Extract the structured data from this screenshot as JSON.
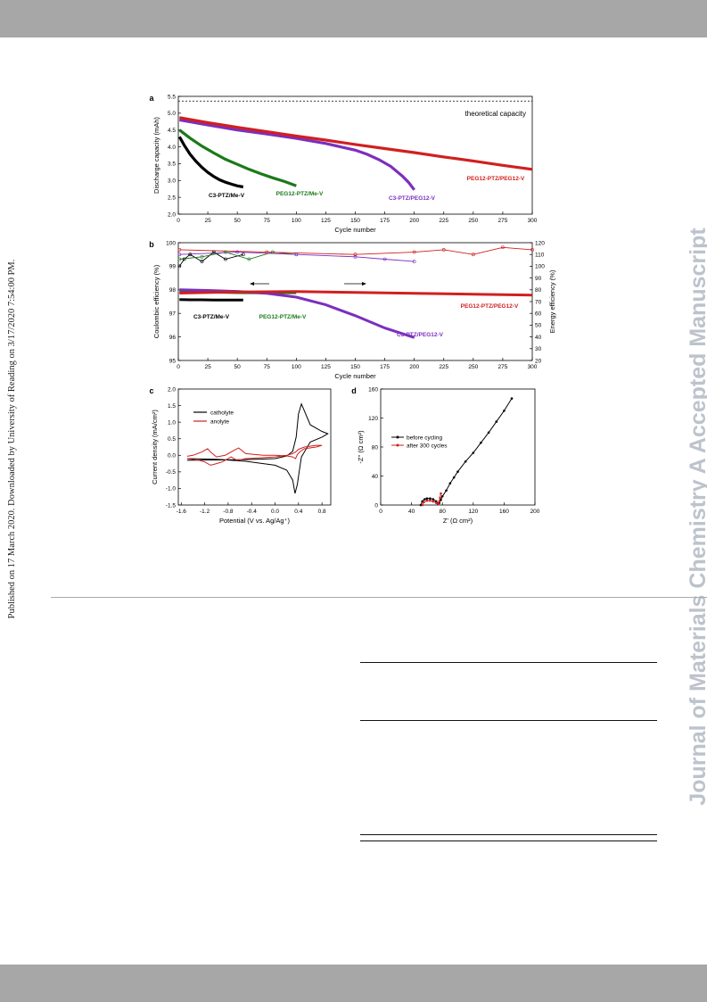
{
  "page": {
    "side_note": "Published on 17 March 2020. Downloaded by University of Reading on 3/17/2020 7:54:00 PM.",
    "watermark": "Journal of Materials Chemistry A Accepted Manuscript"
  },
  "chart_data": [
    {
      "panel": "a",
      "type": "line",
      "xlabel": "Cycle number",
      "ylabel": "Discharge capacity (mAh)",
      "xlim": [
        0,
        300
      ],
      "ylim": [
        2.0,
        5.5
      ],
      "xticks": [
        "0",
        "25",
        "50",
        "75",
        "100",
        "125",
        "150",
        "175",
        "200",
        "225",
        "250",
        "275",
        "300"
      ],
      "yticks": [
        "2.0",
        "2.5",
        "3.0",
        "3.5",
        "4.0",
        "4.5",
        "5.0",
        "5.5"
      ],
      "annotation": "theoretical capacity",
      "reference_line": 5.36,
      "series": [
        {
          "name": "C3-PTZ/Me-V",
          "color": "#000000",
          "x": [
            1,
            5,
            10,
            15,
            20,
            25,
            30,
            35,
            40,
            45,
            50,
            55
          ],
          "y": [
            4.3,
            4.05,
            3.78,
            3.57,
            3.39,
            3.24,
            3.12,
            3.02,
            2.95,
            2.89,
            2.84,
            2.81
          ]
        },
        {
          "name": "PEG12-PTZ/Me-V",
          "color": "#1a7a1a",
          "x": [
            1,
            10,
            20,
            30,
            40,
            50,
            60,
            70,
            80,
            90,
            100
          ],
          "y": [
            4.5,
            4.26,
            4.02,
            3.82,
            3.63,
            3.48,
            3.33,
            3.2,
            3.08,
            2.97,
            2.84
          ]
        },
        {
          "name": "C3-PTZ/PEG12-V",
          "color": "#7b2fbe",
          "x": [
            1,
            25,
            50,
            75,
            100,
            125,
            150,
            160,
            170,
            180,
            190,
            195,
            200
          ],
          "y": [
            4.8,
            4.65,
            4.5,
            4.38,
            4.25,
            4.1,
            3.9,
            3.78,
            3.62,
            3.42,
            3.13,
            2.95,
            2.72
          ]
        },
        {
          "name": "PEG12-PTZ/PEG12-V",
          "color": "#d11f1f",
          "x": [
            1,
            25,
            50,
            75,
            100,
            125,
            150,
            175,
            200,
            225,
            250,
            275,
            300
          ],
          "y": [
            4.87,
            4.72,
            4.58,
            4.45,
            4.32,
            4.2,
            4.07,
            3.95,
            3.83,
            3.7,
            3.58,
            3.45,
            3.33
          ]
        }
      ]
    },
    {
      "panel": "b",
      "type": "line",
      "xlabel": "Cycle number",
      "ylabel": "Coulombic efficiency (%)",
      "ylabel_right": "Energy efficiency (%)",
      "xlim": [
        0,
        300
      ],
      "ylim": [
        95,
        100
      ],
      "ylim_right": [
        20,
        120
      ],
      "xticks": [
        "0",
        "25",
        "50",
        "75",
        "100",
        "125",
        "150",
        "175",
        "200",
        "225",
        "250",
        "275",
        "300"
      ],
      "yticks": [
        "95",
        "96",
        "97",
        "98",
        "99",
        "100"
      ],
      "yticks_right": [
        "20",
        "30",
        "40",
        "50",
        "60",
        "70",
        "80",
        "90",
        "100",
        "110",
        "120"
      ],
      "coulombic_efficiency": [
        {
          "name": "C3-PTZ/Me-V",
          "color": "#000000",
          "x": [
            1,
            5,
            10,
            20,
            30,
            40,
            55
          ],
          "y": [
            99.0,
            99.3,
            99.5,
            99.2,
            99.6,
            99.3,
            99.5
          ]
        },
        {
          "name": "PEG12-PTZ/Me-V",
          "color": "#1a7a1a",
          "x": [
            1,
            20,
            40,
            60,
            80,
            100
          ],
          "y": [
            99.3,
            99.4,
            99.6,
            99.3,
            99.6,
            99.5
          ]
        },
        {
          "name": "C3-PTZ/PEG12-V",
          "color": "#7b2fbe",
          "x": [
            1,
            50,
            100,
            150,
            175,
            200
          ],
          "y": [
            99.5,
            99.6,
            99.5,
            99.4,
            99.3,
            99.2
          ]
        },
        {
          "name": "PEG12-PTZ/PEG12-V",
          "color": "#d11f1f",
          "x": [
            1,
            75,
            150,
            200,
            225,
            250,
            275,
            300
          ],
          "y": [
            99.7,
            99.6,
            99.5,
            99.6,
            99.7,
            99.5,
            99.8,
            99.7
          ]
        }
      ],
      "energy_efficiency": [
        {
          "name": "C3-PTZ/Me-V",
          "color": "#000000",
          "x": [
            1,
            10,
            20,
            30,
            40,
            55
          ],
          "y": [
            71.7,
            71.5,
            71.5,
            71.4,
            71.4,
            71.3
          ]
        },
        {
          "name": "PEG12-PTZ/Me-V",
          "color": "#1a7a1a",
          "x": [
            1,
            25,
            50,
            75,
            100
          ],
          "y": [
            78.5,
            78.0,
            77.6,
            77.4,
            77.5
          ]
        },
        {
          "name": "C3-PTZ/PEG12-V",
          "color": "#7b2fbe",
          "x": [
            1,
            25,
            50,
            75,
            100,
            125,
            150,
            175,
            200
          ],
          "y": [
            80.0,
            79.5,
            78.6,
            77.0,
            73.8,
            67.3,
            58.0,
            47.6,
            39.5
          ]
        },
        {
          "name": "PEG12-PTZ/PEG12-V",
          "color": "#d11f1f",
          "x": [
            1,
            50,
            100,
            150,
            200,
            250,
            300
          ],
          "y": [
            77.2,
            78.2,
            78.5,
            77.8,
            77.0,
            76.3,
            75.5
          ]
        }
      ]
    },
    {
      "panel": "c",
      "type": "line",
      "xlabel": "Potential (V vs. Ag/Ag⁺)",
      "ylabel": "Current density (mA/cm²)",
      "xlim": [
        -1.65,
        0.95
      ],
      "ylim": [
        -1.5,
        2.0
      ],
      "xticks": [
        "-1.6",
        "-1.2",
        "-0.8",
        "-0.4",
        "0.0",
        "0.4",
        "0.8"
      ],
      "yticks": [
        "-1.5",
        "-1.0",
        "-0.5",
        "0.0",
        "0.5",
        "1.0",
        "1.5",
        "2.0"
      ],
      "series": [
        {
          "name": "catholyte",
          "color": "#000000",
          "x": [
            -1.5,
            -1.0,
            -0.5,
            0.0,
            0.2,
            0.3,
            0.36,
            0.4,
            0.45,
            0.6,
            0.8,
            0.9,
            0.8,
            0.6,
            0.45,
            0.42,
            0.38,
            0.34,
            0.3,
            0.2,
            0.0,
            -0.5,
            -1.0,
            -1.5
          ],
          "y": [
            -0.15,
            -0.14,
            -0.13,
            -0.1,
            -0.02,
            0.12,
            0.55,
            1.25,
            1.55,
            0.92,
            0.72,
            0.65,
            0.55,
            0.4,
            -0.05,
            -0.4,
            -0.88,
            -1.15,
            -0.75,
            -0.45,
            -0.3,
            -0.18,
            -0.12,
            -0.1
          ]
        },
        {
          "name": "anolyte",
          "color": "#d11f1f",
          "x": [
            -1.5,
            -1.3,
            -1.2,
            -1.1,
            -1.0,
            -0.9,
            -0.75,
            -0.65,
            -0.5,
            -0.2,
            0.0,
            0.2,
            0.3,
            0.35,
            0.4,
            0.5,
            0.7,
            0.8,
            0.7,
            0.5,
            0.42,
            0.38,
            0.35,
            0.3,
            0.2,
            0.0,
            -0.2,
            -0.5,
            -0.62,
            -0.7,
            -0.85,
            -1.0,
            -1.1,
            -1.15,
            -1.25,
            -1.4,
            -1.5
          ],
          "y": [
            -0.1,
            -0.15,
            -0.2,
            -0.3,
            -0.25,
            -0.2,
            -0.05,
            -0.15,
            -0.1,
            -0.07,
            -0.05,
            0.0,
            0.05,
            0.1,
            0.18,
            0.25,
            0.3,
            0.3,
            0.25,
            0.2,
            0.1,
            0.02,
            -0.1,
            -0.05,
            -0.02,
            0.0,
            0.0,
            0.05,
            0.22,
            0.15,
            0.0,
            -0.05,
            0.1,
            0.2,
            0.1,
            0.0,
            -0.03
          ]
        }
      ],
      "legend": [
        "catholyte",
        "anolyte"
      ]
    },
    {
      "panel": "d",
      "type": "scatter",
      "xlabel": "Z' (Ω cm²)",
      "ylabel": "-Z'' (Ω cm²)",
      "xlim": [
        0,
        200
      ],
      "ylim": [
        0,
        160
      ],
      "xticks": [
        "0",
        "40",
        "80",
        "120",
        "160",
        "200"
      ],
      "yticks": [
        "0",
        "40",
        "80",
        "120",
        "160"
      ],
      "series": [
        {
          "name": "before cycling",
          "color": "#000000",
          "x": [
            52,
            54,
            57,
            60,
            64,
            68,
            72,
            74,
            76,
            78,
            80,
            85,
            90,
            95,
            100,
            110,
            120,
            130,
            140,
            150,
            160,
            170
          ],
          "y": [
            0,
            5,
            8,
            9,
            9,
            8,
            5,
            2,
            3,
            7,
            12,
            20,
            30,
            38,
            46,
            60,
            72,
            86,
            100,
            115,
            130,
            147
          ]
        },
        {
          "name": "after 300 cycles",
          "color": "#d11f1f",
          "x": [
            54,
            56,
            60,
            64,
            68,
            72,
            75,
            76,
            77,
            78
          ],
          "y": [
            0,
            4,
            6,
            6,
            5,
            3,
            1,
            5,
            10,
            16
          ]
        }
      ]
    }
  ]
}
